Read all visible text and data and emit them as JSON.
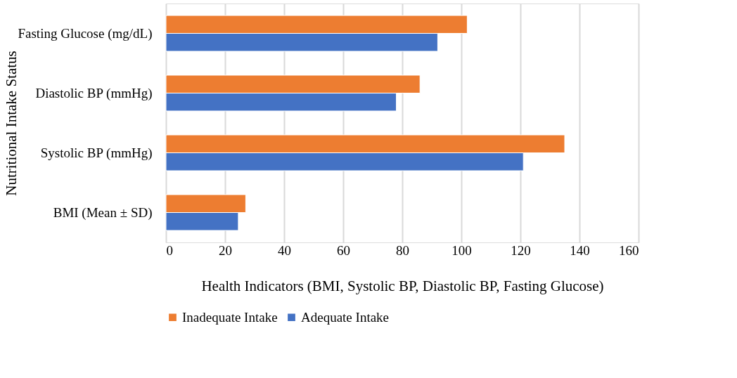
{
  "chart_data": {
    "type": "bar",
    "orientation": "horizontal",
    "xlabel": "Health Indicators (BMI, Systolic BP, Diastolic BP, Fasting Glucose)",
    "ylabel": "Nutritional Intake Status",
    "categories": [
      "Fasting Glucose (mg/dL)",
      "Diastolic BP (mmHg)",
      "Systolic BP (mmHg)",
      "BMI (Mean ± SD)"
    ],
    "series": [
      {
        "name": "Inadequate Intake",
        "color": "#ed7d31",
        "values": [
          102,
          86,
          135,
          27
        ]
      },
      {
        "name": "Adequate Intake",
        "color": "#4472c4",
        "values": [
          92,
          78,
          121,
          24.5
        ]
      }
    ],
    "xlim": [
      0,
      160
    ],
    "xticks": [
      0,
      20,
      40,
      60,
      80,
      100,
      120,
      140,
      160
    ],
    "grid": "x",
    "legend": "bottom"
  }
}
